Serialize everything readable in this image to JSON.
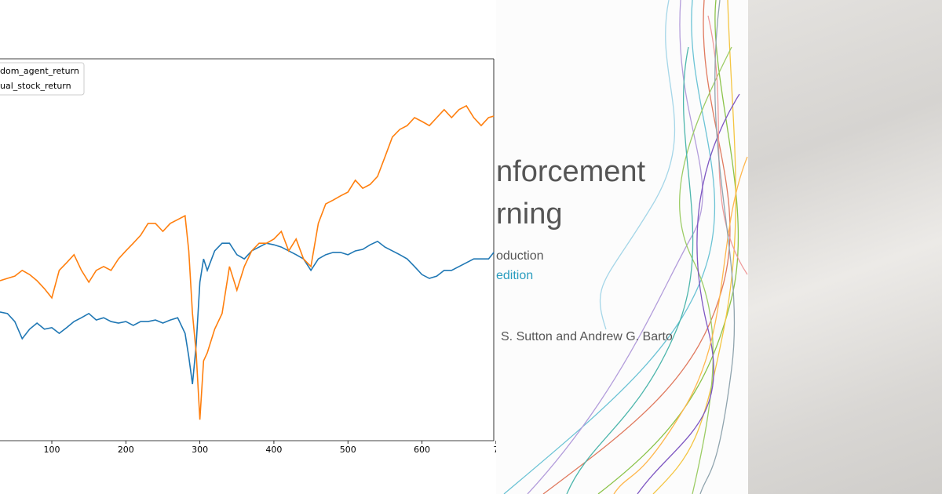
{
  "chart_data": {
    "type": "line",
    "x": [
      30,
      40,
      50,
      60,
      70,
      80,
      90,
      100,
      110,
      120,
      130,
      140,
      150,
      160,
      170,
      180,
      190,
      200,
      210,
      220,
      230,
      240,
      250,
      260,
      270,
      280,
      285,
      290,
      295,
      300,
      305,
      310,
      320,
      330,
      340,
      350,
      360,
      370,
      380,
      390,
      400,
      410,
      420,
      430,
      440,
      450,
      460,
      470,
      480,
      490,
      500,
      510,
      520,
      530,
      540,
      550,
      560,
      570,
      580,
      590,
      600,
      610,
      620,
      630,
      640,
      650,
      660,
      670,
      680,
      690,
      697
    ],
    "series": [
      {
        "name": "dom_agent_return",
        "color": "#1f77b4",
        "values": [
          33.7,
          33.3,
          31.2,
          26.7,
          29.2,
          30.8,
          29.2,
          29.6,
          28.1,
          29.6,
          31.2,
          32.2,
          33.3,
          31.6,
          32.2,
          31.2,
          30.8,
          31.2,
          30.2,
          31.2,
          31.2,
          31.6,
          30.8,
          31.6,
          32.2,
          28.1,
          22.0,
          14.8,
          25.1,
          41.5,
          47.6,
          44.6,
          49.7,
          51.7,
          51.7,
          48.7,
          47.6,
          49.7,
          50.7,
          51.7,
          51.3,
          50.7,
          49.7,
          48.7,
          47.6,
          44.6,
          47.6,
          48.7,
          49.3,
          49.3,
          48.7,
          49.7,
          50.1,
          51.3,
          52.2,
          50.7,
          49.7,
          48.7,
          47.6,
          45.6,
          43.5,
          42.5,
          43.1,
          44.6,
          44.6,
          45.6,
          46.6,
          47.6,
          47.6,
          47.6,
          49.3
        ]
      },
      {
        "name": "ual_stock_return",
        "color": "#ff7f0e",
        "values": [
          41.9,
          42.5,
          43.1,
          44.6,
          43.5,
          41.9,
          39.8,
          37.4,
          44.6,
          46.6,
          48.7,
          44.6,
          41.5,
          44.6,
          45.6,
          44.6,
          47.6,
          49.7,
          51.7,
          53.8,
          56.9,
          56.9,
          54.8,
          56.9,
          57.9,
          58.9,
          49.7,
          33.3,
          23.0,
          5.5,
          20.9,
          23.0,
          29.2,
          33.3,
          45.6,
          39.4,
          45.6,
          49.7,
          51.7,
          51.7,
          52.8,
          54.8,
          49.7,
          52.8,
          47.6,
          45.6,
          56.9,
          62.0,
          63.0,
          64.1,
          65.1,
          68.2,
          66.1,
          67.1,
          69.2,
          74.3,
          79.5,
          81.5,
          82.5,
          84.6,
          83.6,
          82.5,
          84.6,
          86.7,
          84.6,
          86.7,
          87.7,
          84.6,
          82.5,
          84.6,
          85.0
        ]
      }
    ],
    "xlim": [
      30,
      697
    ],
    "ylim": [
      0,
      100
    ],
    "xticks": [
      100,
      200,
      300,
      400,
      500,
      600,
      {
        "value": 700,
        "label": "7"
      }
    ],
    "legend": "upper left"
  },
  "book_cover": {
    "title_lines": [
      "nforcement",
      "rning"
    ],
    "subtitle": "oduction",
    "edition": "edition",
    "authors": "S. Sutton and Andrew G. Barto"
  }
}
